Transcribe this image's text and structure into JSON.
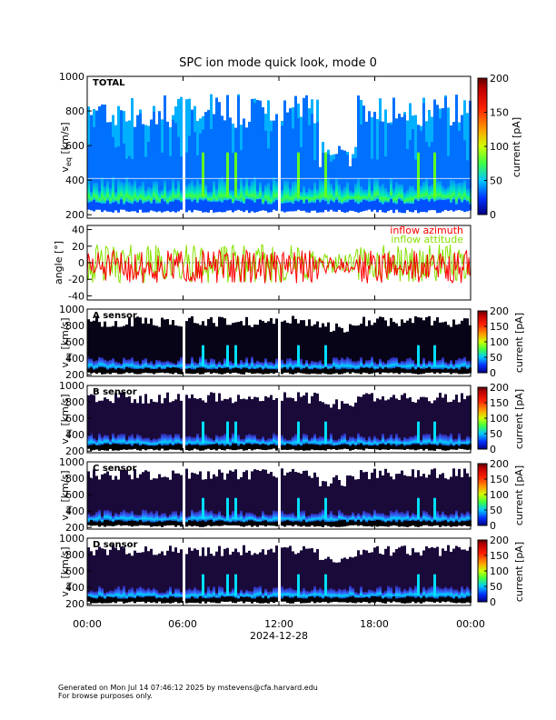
{
  "title": "SPC ion mode quick look, mode 0",
  "date_label": "2024-12-28",
  "footer": {
    "line1": "Generated on Mon Jul 14 07:46:12 2025 by mstevens@cfa.harvard.edu",
    "line2": "For browse purposes only."
  },
  "x_ticks": [
    "00:00",
    "06:00",
    "12:00",
    "18:00",
    "00:00"
  ],
  "chart_data": [
    {
      "id": "total",
      "type": "heatmap",
      "panel_label": "TOTAL",
      "ylabel_main": "v",
      "ylabel_sub": "eq",
      "ylabel_unit": " [km/s]",
      "y_ticks": [
        "200",
        "400",
        "600",
        "800",
        "1000"
      ],
      "ylim": [
        180,
        1000
      ],
      "colorbar": {
        "label": "current [pA]",
        "ticks": [
          "0",
          "50",
          "100",
          "150",
          "200"
        ],
        "range": [
          0,
          200
        ]
      },
      "median_band_kms": [
        270,
        380
      ],
      "peak_current_pA": 60
    },
    {
      "id": "angle",
      "type": "line",
      "ylabel": "angle [°]",
      "y_ticks": [
        "-40",
        "-20",
        "0",
        "20",
        "40"
      ],
      "ylim": [
        -45,
        45
      ],
      "series": [
        {
          "name": "inflow azimuth",
          "color": "#ff0000",
          "range": [
            -25,
            15
          ]
        },
        {
          "name": "inflow attitude",
          "color": "#88e000",
          "range": [
            -25,
            22
          ]
        }
      ]
    },
    {
      "id": "a",
      "type": "heatmap",
      "panel_label": "A sensor",
      "ylabel_main": "v",
      "ylabel_sub": "eq",
      "ylabel_unit": " [km/s]",
      "y_ticks": [
        "200",
        "400",
        "600",
        "800",
        "1000"
      ],
      "ylim": [
        180,
        1000
      ],
      "colorbar": {
        "label": "current [pA]",
        "ticks": [
          "0",
          "50",
          "100",
          "150",
          "200"
        ],
        "range": [
          0,
          200
        ]
      }
    },
    {
      "id": "b",
      "type": "heatmap",
      "panel_label": "B sensor",
      "ylabel_main": "v",
      "ylabel_sub": "eq",
      "ylabel_unit": " [km/s]",
      "y_ticks": [
        "200",
        "400",
        "600",
        "800",
        "1000"
      ],
      "ylim": [
        180,
        1000
      ],
      "colorbar": {
        "label": "current [pA]",
        "ticks": [
          "0",
          "50",
          "100",
          "150",
          "200"
        ],
        "range": [
          0,
          200
        ]
      }
    },
    {
      "id": "c",
      "type": "heatmap",
      "panel_label": "C sensor",
      "ylabel_main": "v",
      "ylabel_sub": "eq",
      "ylabel_unit": " [km/s]",
      "y_ticks": [
        "200",
        "400",
        "600",
        "800",
        "1000"
      ],
      "ylim": [
        180,
        1000
      ],
      "colorbar": {
        "label": "current [pA]",
        "ticks": [
          "0",
          "50",
          "100",
          "150",
          "200"
        ],
        "range": [
          0,
          200
        ]
      }
    },
    {
      "id": "d",
      "type": "heatmap",
      "panel_label": "D sensor",
      "ylabel_main": "v",
      "ylabel_sub": "eq",
      "ylabel_unit": " [km/s]",
      "y_ticks": [
        "200",
        "400",
        "600",
        "800",
        "1000"
      ],
      "ylim": [
        180,
        1000
      ],
      "colorbar": {
        "label": "current [pA]",
        "ticks": [
          "0",
          "50",
          "100",
          "150",
          "200"
        ],
        "range": [
          0,
          200
        ]
      }
    }
  ]
}
